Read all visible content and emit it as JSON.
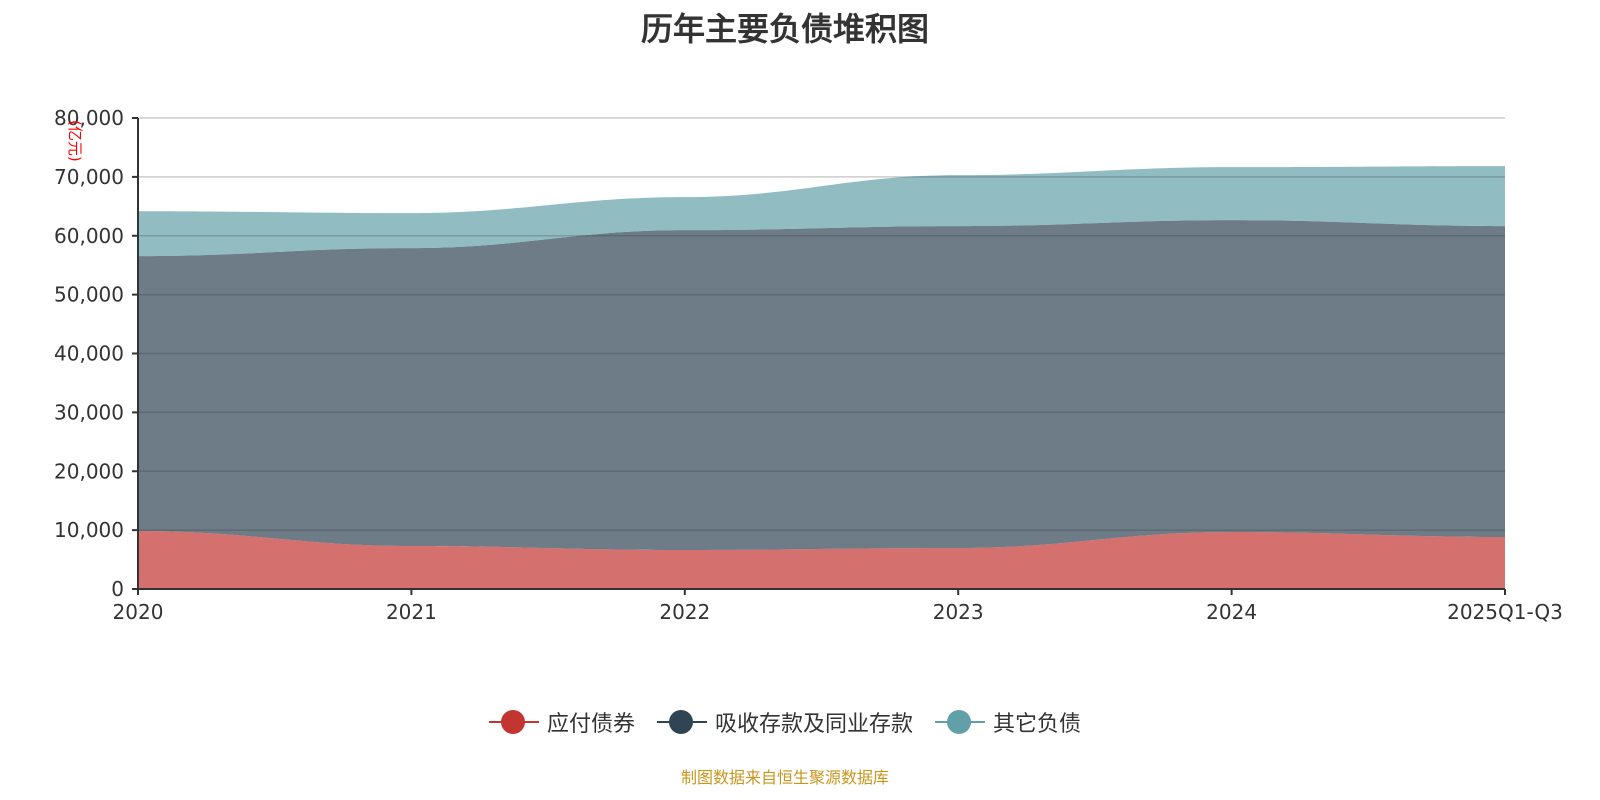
{
  "chart_data": {
    "type": "area",
    "stacked": true,
    "title": "历年主要负债堆积图",
    "ylabel": "(亿元)",
    "ylim": [
      0,
      80000
    ],
    "yticks": [
      "0",
      "10,000",
      "20,000",
      "30,000",
      "40,000",
      "50,000",
      "60,000",
      "70,000",
      "80,000"
    ],
    "categories": [
      "2020",
      "2021",
      "2022",
      "2023",
      "2024",
      "2025Q1-Q3"
    ],
    "grid": true,
    "legend_position": "bottom",
    "series": [
      {
        "name": "应付债券",
        "color": "#c23531",
        "values": [
          9850,
          7300,
          6620,
          6960,
          9680,
          8830
        ]
      },
      {
        "name": "吸收存款及同业存款",
        "color": "#2f4554",
        "values": [
          46690,
          50600,
          54330,
          54670,
          52970,
          52800
        ]
      },
      {
        "name": "其它负债",
        "color": "#61a0a8",
        "values": [
          7630,
          5940,
          5600,
          8660,
          9000,
          10190
        ]
      }
    ]
  },
  "source": "制图数据来自恒生聚源数据库"
}
